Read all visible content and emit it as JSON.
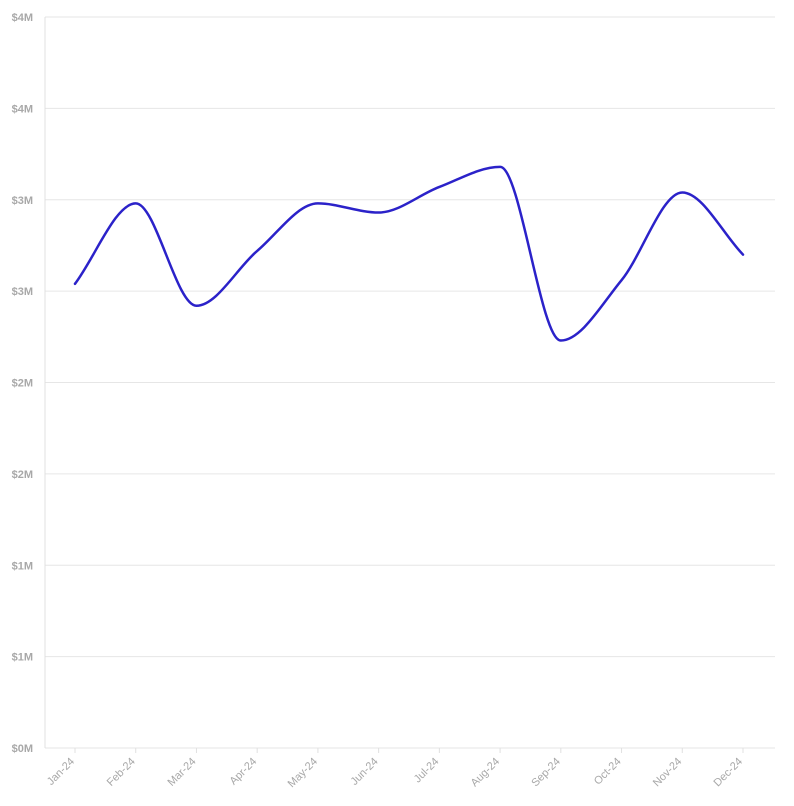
{
  "chart_data": {
    "type": "line",
    "title": "",
    "xlabel": "",
    "ylabel": "",
    "categories": [
      "Jan-24",
      "Feb-24",
      "Mar-24",
      "Apr-24",
      "May-24",
      "Jun-24",
      "Jul-24",
      "Aug-24",
      "Sep-24",
      "Oct-24",
      "Nov-24",
      "Dec-24"
    ],
    "y_ticks": [
      {
        "value": 0,
        "label": "$0M"
      },
      {
        "value": 0.5,
        "label": "$1M"
      },
      {
        "value": 1.0,
        "label": "$1M"
      },
      {
        "value": 1.5,
        "label": "$2M"
      },
      {
        "value": 2.0,
        "label": "$2M"
      },
      {
        "value": 2.5,
        "label": "$3M"
      },
      {
        "value": 3.0,
        "label": "$3M"
      },
      {
        "value": 3.5,
        "label": "$4M"
      },
      {
        "value": 4.0,
        "label": "$4M"
      }
    ],
    "ylim": [
      0,
      4.0
    ],
    "grid": true,
    "legend": "none",
    "series": [
      {
        "color": "#2b22c9",
        "values": [
          2.54,
          2.98,
          2.42,
          2.72,
          2.98,
          2.93,
          3.07,
          3.18,
          2.23,
          2.56,
          3.04,
          2.7
        ]
      }
    ]
  }
}
